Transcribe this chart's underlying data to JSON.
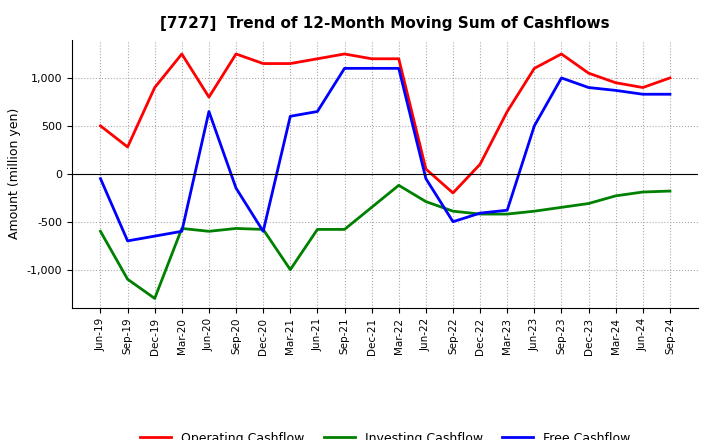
{
  "title": "[7727]  Trend of 12-Month Moving Sum of Cashflows",
  "ylabel": "Amount (million yen)",
  "x_labels": [
    "Jun-19",
    "Sep-19",
    "Dec-19",
    "Mar-20",
    "Jun-20",
    "Sep-20",
    "Dec-20",
    "Mar-21",
    "Jun-21",
    "Sep-21",
    "Dec-21",
    "Mar-22",
    "Jun-22",
    "Sep-22",
    "Dec-22",
    "Mar-23",
    "Jun-23",
    "Sep-23",
    "Dec-23",
    "Mar-24",
    "Jun-24",
    "Sep-24"
  ],
  "operating": [
    500,
    280,
    900,
    1250,
    800,
    1250,
    1150,
    1150,
    1200,
    1250,
    1200,
    1200,
    50,
    -200,
    100,
    650,
    1100,
    1250,
    1050,
    950,
    900,
    1000
  ],
  "investing": [
    -600,
    -1100,
    -1300,
    -570,
    -600,
    -570,
    -580,
    -1000,
    -580,
    -580,
    -350,
    -120,
    -290,
    -390,
    -420,
    -420,
    -390,
    -350,
    -310,
    -230,
    -190,
    -180
  ],
  "free": [
    -50,
    -700,
    -650,
    -600,
    650,
    -150,
    -600,
    600,
    650,
    1100,
    1100,
    1100,
    -50,
    -500,
    -410,
    -380,
    500,
    1000,
    900,
    870,
    830,
    830
  ],
  "operating_color": "#ff0000",
  "investing_color": "#008000",
  "free_color": "#0000ff",
  "ylim": [
    -1400,
    1400
  ],
  "yticks": [
    -1000,
    -500,
    0,
    500,
    1000
  ],
  "bg_color": "#ffffff",
  "grid_color": "#aaaaaa",
  "title_fontsize": 11,
  "axis_fontsize": 9,
  "legend_fontsize": 9
}
